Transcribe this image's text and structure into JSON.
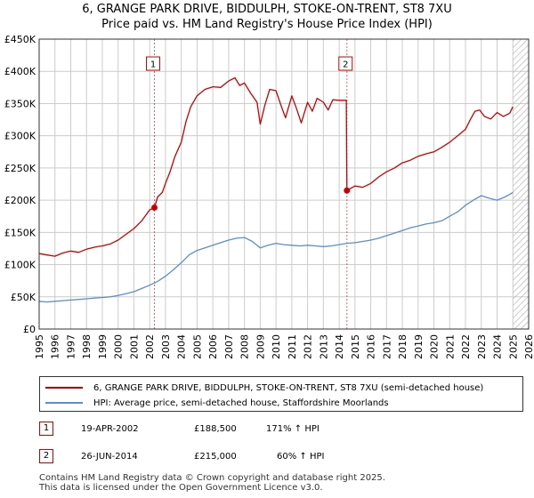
{
  "title_line1": "6, GRANGE PARK DRIVE, BIDDULPH, STOKE-ON-TRENT, ST8 7XU",
  "title_line2": "Price paid vs. HM Land Registry's House Price Index (HPI)",
  "colors": {
    "property": "#cc0000",
    "hpi": "#5a8fc8",
    "marker": "#cc0000",
    "grid": "#cccccc",
    "hatch": "#bbbbbb"
  },
  "chart_data": {
    "type": "line",
    "ylim": [
      0,
      450000
    ],
    "xlim": [
      1995,
      2026
    ],
    "yticks": [
      {
        "value": 0,
        "label": "£0"
      },
      {
        "value": 50000,
        "label": "£50K"
      },
      {
        "value": 100000,
        "label": "£100K"
      },
      {
        "value": 150000,
        "label": "£150K"
      },
      {
        "value": 200000,
        "label": "£200K"
      },
      {
        "value": 250000,
        "label": "£250K"
      },
      {
        "value": 300000,
        "label": "£300K"
      },
      {
        "value": 350000,
        "label": "£350K"
      },
      {
        "value": 400000,
        "label": "£400K"
      },
      {
        "value": 450000,
        "label": "£450K"
      }
    ],
    "xticks": [
      "1995",
      "1996",
      "1997",
      "1998",
      "1999",
      "2000",
      "2001",
      "2002",
      "2003",
      "2004",
      "2005",
      "2006",
      "2007",
      "2008",
      "2009",
      "2010",
      "2011",
      "2012",
      "2013",
      "2014",
      "2015",
      "2016",
      "2017",
      "2018",
      "2019",
      "2020",
      "2021",
      "2022",
      "2023",
      "2024",
      "2025",
      "2026"
    ],
    "future_start": 2025.0,
    "series": [
      {
        "name": "6, GRANGE PARK DRIVE, BIDDULPH, STOKE-ON-TRENT, ST8 7XU (semi-detached house)",
        "x": [
          1995.0,
          1995.5,
          1996.0,
          1996.5,
          1997.0,
          1997.5,
          1998.0,
          1998.5,
          1999.0,
          1999.5,
          2000.0,
          2000.5,
          2001.0,
          2001.5,
          2002.0,
          2002.3,
          2002.5,
          2002.8,
          2003.0,
          2003.3,
          2003.6,
          2004.0,
          2004.3,
          2004.6,
          2005.0,
          2005.5,
          2006.0,
          2006.5,
          2007.0,
          2007.4,
          2007.7,
          2008.0,
          2008.4,
          2008.8,
          2009.0,
          2009.3,
          2009.6,
          2010.0,
          2010.3,
          2010.6,
          2011.0,
          2011.3,
          2011.6,
          2012.0,
          2012.3,
          2012.6,
          2013.0,
          2013.3,
          2013.6,
          2014.0,
          2014.45,
          2014.49,
          2015.0,
          2015.5,
          2016.0,
          2016.5,
          2017.0,
          2017.5,
          2018.0,
          2018.5,
          2019.0,
          2019.5,
          2020.0,
          2020.5,
          2021.0,
          2021.5,
          2022.0,
          2022.3,
          2022.6,
          2022.9,
          2023.2,
          2023.6,
          2024.0,
          2024.4,
          2024.8,
          2025.0
        ],
        "values": [
          117000,
          115000,
          113000,
          118000,
          121000,
          119000,
          124000,
          127000,
          129000,
          132000,
          138000,
          147000,
          156000,
          168000,
          185000,
          188500,
          205000,
          212000,
          226000,
          245000,
          268000,
          290000,
          322000,
          345000,
          362000,
          372000,
          376000,
          375000,
          385000,
          390000,
          378000,
          382000,
          366000,
          352000,
          318000,
          348000,
          372000,
          370000,
          348000,
          328000,
          362000,
          342000,
          320000,
          352000,
          338000,
          358000,
          352000,
          340000,
          356000,
          355000,
          355000,
          215000,
          222000,
          220000,
          226000,
          236000,
          244000,
          250000,
          258000,
          262000,
          268000,
          272000,
          275000,
          282000,
          290000,
          300000,
          310000,
          325000,
          338000,
          340000,
          330000,
          326000,
          336000,
          330000,
          335000,
          345000
        ]
      },
      {
        "name": "HPI: Average price, semi-detached house, Staffordshire Moorlands",
        "x": [
          1995.0,
          1995.5,
          1996.0,
          1996.5,
          1997.0,
          1997.5,
          1998.0,
          1998.5,
          1999.0,
          1999.5,
          2000.0,
          2000.5,
          2001.0,
          2001.5,
          2002.0,
          2002.5,
          2003.0,
          2003.5,
          2004.0,
          2004.5,
          2005.0,
          2005.5,
          2006.0,
          2006.5,
          2007.0,
          2007.5,
          2008.0,
          2008.5,
          2009.0,
          2009.5,
          2010.0,
          2010.5,
          2011.0,
          2011.5,
          2012.0,
          2012.5,
          2013.0,
          2013.5,
          2014.0,
          2014.5,
          2015.0,
          2015.5,
          2016.0,
          2016.5,
          2017.0,
          2017.5,
          2018.0,
          2018.5,
          2019.0,
          2019.5,
          2020.0,
          2020.5,
          2021.0,
          2021.5,
          2022.0,
          2022.5,
          2023.0,
          2023.5,
          2024.0,
          2024.5,
          2025.0
        ],
        "values": [
          43000,
          42000,
          43000,
          44000,
          45000,
          46000,
          47000,
          48000,
          49000,
          50000,
          52000,
          55000,
          58000,
          63000,
          68000,
          74000,
          82000,
          92000,
          103000,
          115000,
          122000,
          126000,
          130000,
          134000,
          138000,
          141000,
          142000,
          136000,
          126000,
          130000,
          133000,
          131000,
          130000,
          129000,
          130000,
          129000,
          128000,
          129000,
          131000,
          133000,
          134000,
          136000,
          138000,
          141000,
          145000,
          149000,
          153000,
          157000,
          160000,
          163000,
          165000,
          168000,
          175000,
          182000,
          192000,
          200000,
          207000,
          203000,
          200000,
          205000,
          212000
        ]
      }
    ],
    "annotations": [
      {
        "label": "1",
        "x": 2002.3,
        "value": 188500
      },
      {
        "label": "2",
        "x": 2014.49,
        "value": 215000
      }
    ]
  },
  "legend": [
    {
      "label": "6, GRANGE PARK DRIVE, BIDDULPH, STOKE-ON-TRENT, ST8 7XU (semi-detached house)"
    },
    {
      "label": "HPI: Average price, semi-detached house, Staffordshire Moorlands"
    }
  ],
  "sales": [
    {
      "num": "1",
      "date": "19-APR-2002",
      "price": "£188,500",
      "hpi": "171% ↑ HPI"
    },
    {
      "num": "2",
      "date": "26-JUN-2014",
      "price": "£215,000",
      "hpi": "60% ↑ HPI"
    }
  ],
  "footer_line1": "Contains HM Land Registry data © Crown copyright and database right 2025.",
  "footer_line2": "This data is licensed under the Open Government Licence v3.0."
}
